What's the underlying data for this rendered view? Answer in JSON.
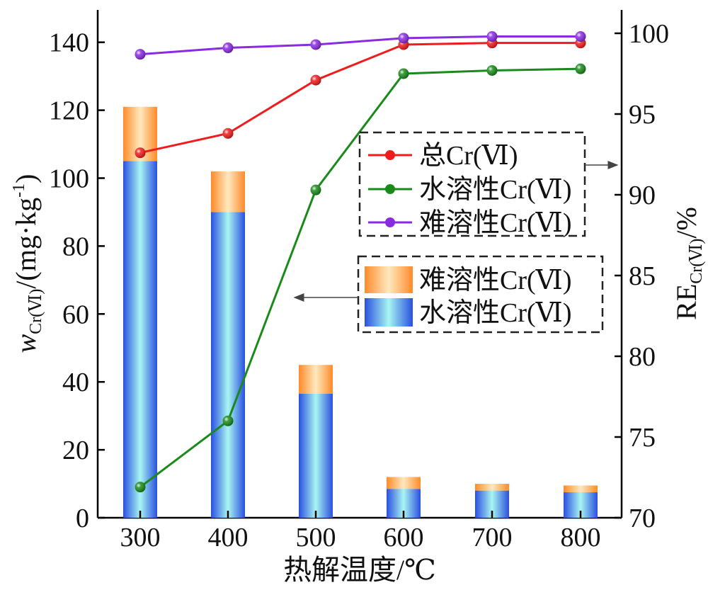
{
  "chart_data": {
    "type": "bar+line",
    "categories": [
      "300",
      "400",
      "500",
      "600",
      "700",
      "800"
    ],
    "xlabel": "热解温度/℃",
    "ylabel_left": {
      "main": "w",
      "sub": "Cr(Ⅵ)",
      "rest": "/(mg·kg",
      "sup": "-1",
      "end": ")"
    },
    "ylabel_right": {
      "main": "RE",
      "sub": "Cr(Ⅵ)",
      "rest": "/%"
    },
    "yleft_lim": [
      0,
      150
    ],
    "yleft_ticks": [
      "0",
      "20",
      "40",
      "60",
      "80",
      "100",
      "120",
      "140"
    ],
    "yright_lim": [
      70,
      100.5
    ],
    "yright_ticks": [
      "70",
      "75",
      "80",
      "85",
      "90",
      "95",
      "100"
    ],
    "bar_series": [
      {
        "name": "水溶性Cr(Ⅵ)",
        "values": [
          105,
          90,
          36.5,
          8.5,
          8,
          7.5
        ],
        "colors": [
          "#2a4fe0",
          "#a8f5f2"
        ]
      },
      {
        "name": "难溶性Cr(Ⅵ)",
        "values": [
          16,
          12,
          8.5,
          3.5,
          2,
          2
        ],
        "colors": [
          "#ff8a2a",
          "#ffe9bf"
        ]
      }
    ],
    "line_series": [
      {
        "name": "总Cr(Ⅵ)",
        "color": "#ee1c1c",
        "values": [
          92.6,
          93.8,
          97.1,
          99.3,
          99.4,
          99.4
        ]
      },
      {
        "name": "水溶性Cr(Ⅵ)",
        "color": "#1a8a1a",
        "values": [
          71.9,
          76.0,
          90.3,
          97.5,
          97.7,
          97.8
        ]
      },
      {
        "name": "难溶性Cr(Ⅵ)",
        "color": "#8a2be2",
        "values": [
          98.7,
          99.1,
          99.3,
          99.7,
          99.8,
          99.8
        ]
      }
    ],
    "grid": false
  }
}
